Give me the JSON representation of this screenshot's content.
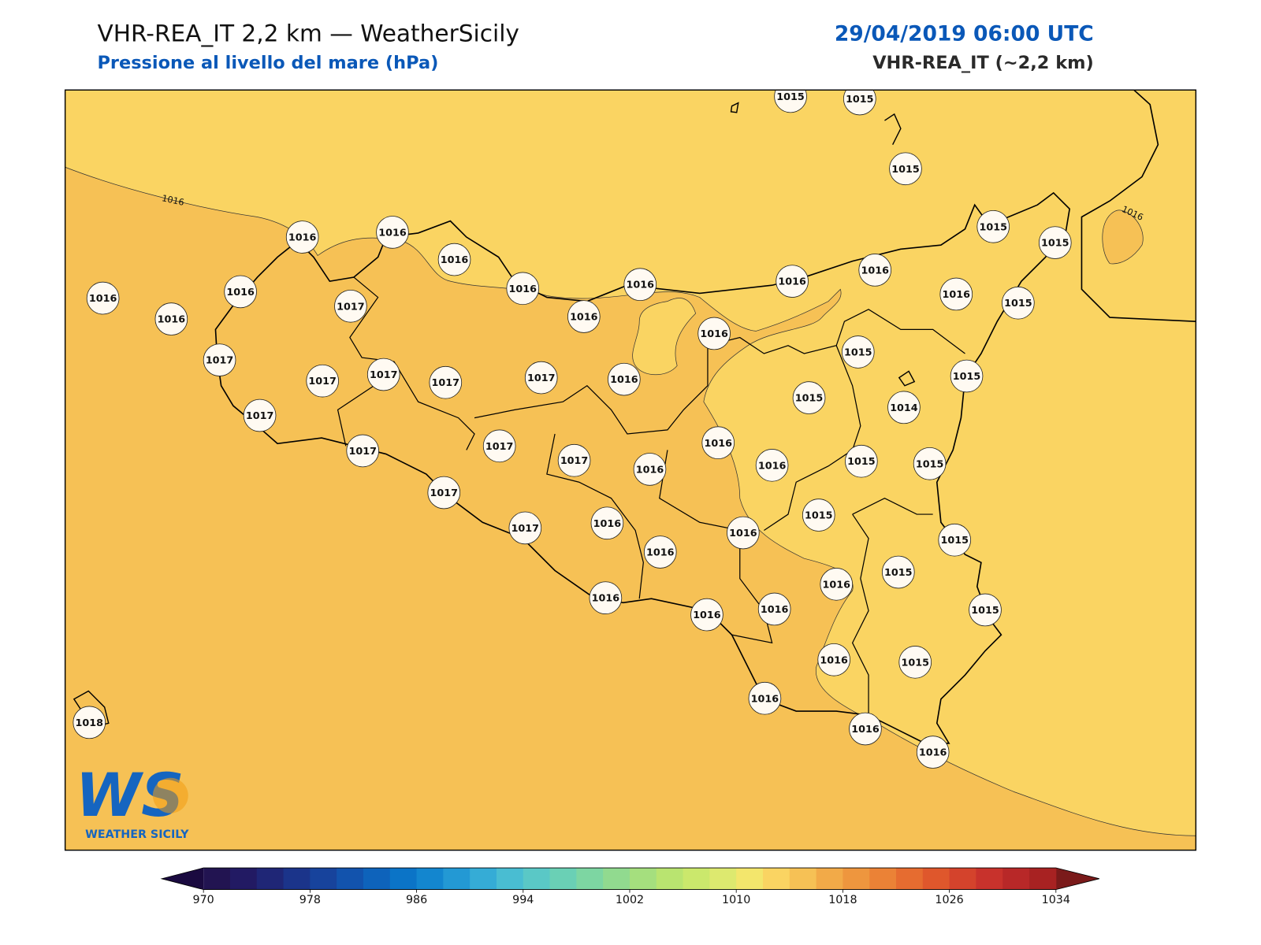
{
  "header": {
    "title": "VHR-REA_IT 2,2 km — WeatherSicily",
    "subtitle": "Pressione al livello del mare (hPa)",
    "valid_time": "29/04/2019 06:00 UTC",
    "model": "VHR-REA_IT (~2,2 km)"
  },
  "map": {
    "stations": [
      1015,
      1015,
      1015,
      1015,
      1015,
      1015,
      1016,
      1016,
      1016,
      1016,
      1016,
      1016,
      1016,
      1016,
      1016,
      1016,
      1016,
      1017,
      1016,
      1016,
      1015,
      1015,
      1017,
      1017,
      1017,
      1017,
      1017,
      1016,
      1015,
      1014,
      1017,
      1016,
      1017,
      1017,
      1017,
      1016,
      1016,
      1015,
      1015,
      1017,
      1015,
      1017,
      1016,
      1016,
      1015,
      1016,
      1015,
      1016,
      1016,
      1016,
      1016,
      1015,
      1016,
      1015,
      1016,
      1016,
      1016,
      1018
    ],
    "contour_labels": [
      1016,
      1016
    ]
  },
  "colorbar": {
    "ticks": [
      970,
      978,
      986,
      994,
      1002,
      1010,
      1018,
      1026,
      1034
    ],
    "colors": [
      "#221451",
      "#221a63",
      "#1f2676",
      "#1b348a",
      "#17439c",
      "#1253ad",
      "#0e63bb",
      "#0b74c7",
      "#1386cf",
      "#2399d4",
      "#35acd6",
      "#49bdd2",
      "#5ac8c6",
      "#6ad0b5",
      "#7dd6a2",
      "#91da8f",
      "#a5df7e",
      "#b9e470",
      "#cbe86c",
      "#dde96f",
      "#f3e66c",
      "#fad462",
      "#f6c155",
      "#f2aa48",
      "#ee963e",
      "#eb8236",
      "#e66c30",
      "#df572c",
      "#d4432c",
      "#c8322c",
      "#b82828",
      "#a82222"
    ],
    "extend_colors": [
      "#1a0a40",
      "#7a1a1a"
    ]
  },
  "logo": {
    "mark": "WS",
    "name": "WEATHER SICILY"
  }
}
